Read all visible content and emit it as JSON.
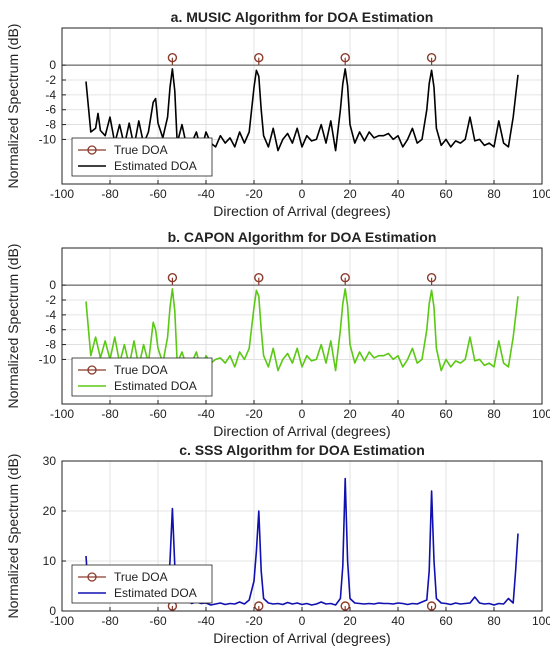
{
  "chart_data": [
    {
      "type": "line",
      "title": "a. MUSIC Algorithm for DOA Estimation",
      "xlabel": "Direction of Arrival (degrees)",
      "ylabel": "Normalized Spectrum (dB)",
      "xlim": [
        -100,
        100
      ],
      "ylim": [
        -16,
        5
      ],
      "xticks": [
        -100,
        -80,
        -60,
        -40,
        -20,
        0,
        20,
        40,
        60,
        80,
        100
      ],
      "yticks": [
        0,
        -2,
        -4,
        -6,
        -8,
        -10
      ],
      "grid": true,
      "zero_line": true,
      "legend": "bottom-left",
      "colors": {
        "true": "#8b3a2b",
        "estimated": "#000000"
      },
      "series": [
        {
          "name": "True DOA",
          "style": "stem",
          "x": [
            -54,
            -18,
            18,
            54
          ],
          "y": [
            1,
            1,
            1,
            1
          ]
        },
        {
          "name": "Estimated DOA",
          "style": "line",
          "x": [
            -90,
            -88,
            -86,
            -85,
            -84,
            -82,
            -80,
            -78,
            -76,
            -74,
            -72,
            -70,
            -68,
            -66,
            -64,
            -62,
            -61,
            -60,
            -58,
            -56,
            -55,
            -54,
            -53,
            -52,
            -50,
            -48,
            -46,
            -44,
            -42,
            -40,
            -38,
            -36,
            -34,
            -32,
            -30,
            -28,
            -26,
            -24,
            -22,
            -20,
            -19,
            -18,
            -17,
            -16,
            -14,
            -12,
            -10,
            -8,
            -6,
            -4,
            -2,
            0,
            2,
            4,
            6,
            8,
            10,
            12,
            14,
            16,
            17,
            18,
            19,
            20,
            22,
            24,
            26,
            28,
            30,
            32,
            34,
            36,
            38,
            40,
            42,
            44,
            46,
            48,
            50,
            52,
            53,
            54,
            55,
            56,
            58,
            60,
            62,
            64,
            66,
            68,
            70,
            72,
            74,
            76,
            78,
            80,
            82,
            84,
            86,
            88,
            90
          ],
          "y": [
            -2.2,
            -9,
            -8.5,
            -6.5,
            -8.8,
            -9.5,
            -7,
            -10.5,
            -8,
            -10.8,
            -7.8,
            -11,
            -7.5,
            -10.6,
            -9,
            -5,
            -4.5,
            -7.8,
            -9.8,
            -7,
            -3,
            -0.5,
            -3.5,
            -10.5,
            -8,
            -11,
            -10.5,
            -9,
            -11.5,
            -9,
            -10.5,
            -11,
            -9.5,
            -10.5,
            -9.8,
            -11,
            -9,
            -10.5,
            -9,
            -3,
            -0.7,
            -1.5,
            -6,
            -9.5,
            -11,
            -8.5,
            -11.5,
            -10,
            -9.2,
            -10.5,
            -8.5,
            -11,
            -9.5,
            -10.2,
            -10,
            -8,
            -10.5,
            -7.5,
            -11.5,
            -6,
            -2.5,
            -0.5,
            -2.8,
            -8,
            -10.5,
            -9,
            -10.2,
            -9,
            -9.8,
            -9.5,
            -9.5,
            -9.2,
            -10,
            -9.5,
            -11,
            -10,
            -8.5,
            -10.5,
            -10,
            -6,
            -2.5,
            -0.7,
            -3,
            -8.5,
            -10.8,
            -10,
            -11,
            -10.2,
            -10.5,
            -10,
            -7,
            -10.2,
            -10,
            -10.8,
            -10.5,
            -11,
            -7.5,
            -10.5,
            -11,
            -7,
            -1.3
          ]
        }
      ]
    },
    {
      "type": "line",
      "title": "b. CAPON Algorithm for DOA Estimation",
      "xlabel": "Direction of Arrival (degrees)",
      "ylabel": "Normalized Spectrum (dB)",
      "xlim": [
        -100,
        100
      ],
      "ylim": [
        -16,
        5
      ],
      "xticks": [
        -100,
        -80,
        -60,
        -40,
        -20,
        0,
        20,
        40,
        60,
        80,
        100
      ],
      "yticks": [
        0,
        -2,
        -4,
        -6,
        -8,
        -10
      ],
      "grid": true,
      "zero_line": true,
      "legend": "bottom-left",
      "colors": {
        "true": "#8b3a2b",
        "estimated": "#5ac814"
      },
      "series": [
        {
          "name": "True DOA",
          "style": "stem",
          "x": [
            -54,
            -18,
            18,
            54
          ],
          "y": [
            1,
            1,
            1,
            1
          ]
        },
        {
          "name": "Estimated DOA",
          "style": "line",
          "x": [
            -90,
            -88,
            -86,
            -84,
            -82,
            -80,
            -78,
            -76,
            -74,
            -72,
            -70,
            -68,
            -66,
            -64,
            -62,
            -61,
            -60,
            -58,
            -56,
            -55,
            -54,
            -53,
            -52,
            -50,
            -48,
            -46,
            -44,
            -42,
            -40,
            -38,
            -36,
            -34,
            -32,
            -30,
            -28,
            -26,
            -24,
            -22,
            -20,
            -19,
            -18,
            -17,
            -16,
            -14,
            -12,
            -10,
            -8,
            -6,
            -4,
            -2,
            0,
            2,
            4,
            6,
            8,
            10,
            12,
            14,
            16,
            17,
            18,
            19,
            20,
            22,
            24,
            26,
            28,
            30,
            32,
            34,
            36,
            38,
            40,
            42,
            44,
            46,
            48,
            50,
            52,
            53,
            54,
            55,
            56,
            58,
            60,
            62,
            64,
            66,
            68,
            70,
            72,
            74,
            76,
            78,
            80,
            82,
            84,
            86,
            88,
            90
          ],
          "y": [
            -2.2,
            -9.5,
            -7,
            -9.8,
            -7.5,
            -10,
            -7,
            -10.5,
            -8,
            -10.8,
            -7.5,
            -11,
            -8,
            -10.5,
            -5,
            -6,
            -8.5,
            -10.5,
            -7,
            -3,
            -0.5,
            -3.5,
            -10.5,
            -9,
            -11,
            -10.5,
            -9,
            -11.5,
            -9.5,
            -10.5,
            -10,
            -9.8,
            -10.5,
            -9.5,
            -11,
            -9,
            -10,
            -8.5,
            -3,
            -0.7,
            -1.5,
            -6,
            -9.5,
            -11,
            -8.5,
            -11.5,
            -10,
            -9.2,
            -10.5,
            -8.5,
            -11,
            -9.5,
            -10.2,
            -10,
            -8,
            -10.5,
            -7.5,
            -11.5,
            -6,
            -2.5,
            -0.5,
            -2.8,
            -8,
            -10.5,
            -9,
            -10.2,
            -9,
            -9.8,
            -9.5,
            -9.5,
            -9.2,
            -10,
            -9.5,
            -11,
            -10,
            -8.5,
            -10.5,
            -10,
            -6,
            -2.5,
            -0.7,
            -3,
            -8.5,
            -11.5,
            -10,
            -11,
            -10.2,
            -10.5,
            -10,
            -7,
            -10.2,
            -10,
            -10.8,
            -10.5,
            -11,
            -7.5,
            -10.5,
            -11,
            -7,
            -1.5
          ]
        }
      ]
    },
    {
      "type": "line",
      "title": "c. SSS Algorithm for DOA Estimation",
      "xlabel": "Direction of Arrival (degrees)",
      "ylabel": "Normalized Spectrum (dB)",
      "xlim": [
        -100,
        100
      ],
      "ylim": [
        0,
        30
      ],
      "xticks": [
        -100,
        -80,
        -60,
        -40,
        -20,
        0,
        20,
        40,
        60,
        80,
        100
      ],
      "yticks": [
        0,
        10,
        20,
        30
      ],
      "grid": true,
      "zero_line": false,
      "legend": "bottom-left",
      "colors": {
        "true": "#8b3a2b",
        "estimated": "#1010b0"
      },
      "series": [
        {
          "name": "True DOA",
          "style": "stem",
          "x": [
            -54,
            -18,
            18,
            54
          ],
          "y": [
            1,
            1,
            1,
            1
          ]
        },
        {
          "name": "Estimated DOA",
          "style": "line",
          "x": [
            -90,
            -89,
            -88,
            -86,
            -84,
            -82,
            -80,
            -78,
            -76,
            -74,
            -72,
            -70,
            -68,
            -66,
            -64,
            -62,
            -60,
            -58,
            -56,
            -55,
            -54,
            -53,
            -52,
            -50,
            -48,
            -46,
            -44,
            -42,
            -40,
            -38,
            -36,
            -34,
            -32,
            -30,
            -28,
            -26,
            -24,
            -22,
            -20,
            -19,
            -18,
            -17,
            -16,
            -14,
            -12,
            -10,
            -8,
            -6,
            -4,
            -2,
            0,
            2,
            4,
            6,
            8,
            10,
            12,
            14,
            16,
            17,
            18,
            19,
            20,
            22,
            24,
            26,
            28,
            30,
            32,
            34,
            36,
            38,
            40,
            42,
            44,
            46,
            48,
            50,
            52,
            53,
            54,
            55,
            56,
            58,
            60,
            62,
            64,
            66,
            68,
            70,
            72,
            74,
            76,
            78,
            80,
            82,
            84,
            86,
            88,
            89,
            90
          ],
          "y": [
            11,
            4,
            2,
            3.5,
            2.5,
            3,
            2.2,
            2.8,
            2,
            2.5,
            2,
            2.3,
            1.8,
            2.6,
            2.2,
            2.5,
            2,
            1.8,
            3,
            10,
            20.5,
            9,
            2.5,
            2,
            2.2,
            1.5,
            1.8,
            1.5,
            1.6,
            1.2,
            1.4,
            1.6,
            1.3,
            1.5,
            1.4,
            1.8,
            1.4,
            2.2,
            6,
            12,
            20,
            8,
            2.5,
            1.6,
            1.4,
            1.5,
            1.3,
            1.7,
            1.4,
            1.6,
            1.3,
            1.5,
            1.2,
            1.4,
            1.8,
            1.4,
            1.5,
            1.2,
            2.5,
            9,
            26.5,
            10,
            2.5,
            1.6,
            1.5,
            1.4,
            1.5,
            1.4,
            1.6,
            1.5,
            1.5,
            1.4,
            1.6,
            1.5,
            1.3,
            1.5,
            1.4,
            1.8,
            2.2,
            8,
            24,
            10,
            2.5,
            1.6,
            1.5,
            1.3,
            1.6,
            1.4,
            1.5,
            1.6,
            2.8,
            1.6,
            1.4,
            1.5,
            1.2,
            1.5,
            1.4,
            2.5,
            1.6,
            8,
            15.5
          ]
        }
      ]
    }
  ]
}
